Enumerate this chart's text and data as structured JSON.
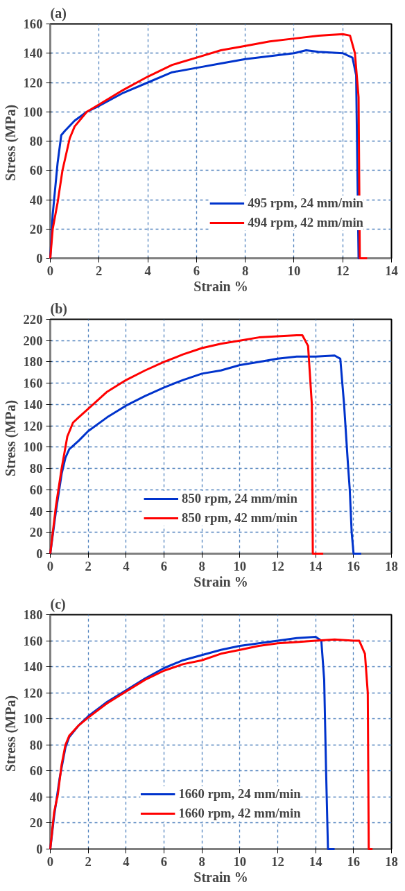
{
  "chart_data": [
    {
      "type": "line",
      "title": "(a)",
      "xlabel": "Strain %",
      "ylabel": "Stress  (MPa)",
      "xlim": [
        0,
        14
      ],
      "xticks": [
        0,
        2,
        4,
        6,
        8,
        10,
        12,
        14
      ],
      "ylim": [
        0,
        160
      ],
      "yticks": [
        0,
        20,
        40,
        60,
        80,
        100,
        120,
        140,
        160
      ],
      "grid": true,
      "legend": "bottom right",
      "series": [
        {
          "name": "495 rpm, 24 mm/min",
          "color": "#0033cc",
          "x": [
            0,
            0.1,
            0.3,
            0.45,
            0.6,
            1,
            1.5,
            2,
            3,
            4,
            5,
            6,
            7,
            8,
            9,
            10,
            10.5,
            11,
            12,
            12.4,
            12.55,
            12.65,
            12.7
          ],
          "values": [
            0,
            30,
            65,
            84,
            87,
            94,
            100,
            104,
            113,
            120,
            127,
            130,
            133,
            136,
            138,
            140,
            142,
            141,
            140,
            137,
            125,
            0,
            0
          ]
        },
        {
          "name": "494 rpm, 42 mm/min",
          "color": "#ff0000",
          "x": [
            0,
            0.1,
            0.3,
            0.5,
            0.8,
            1,
            1.5,
            2,
            3,
            4,
            5,
            6,
            7,
            8,
            9,
            10,
            11,
            12,
            12.3,
            12.5,
            12.65,
            12.7,
            13
          ],
          "values": [
            0,
            20,
            38,
            60,
            82,
            90,
            100,
            105,
            115,
            124,
            132,
            137,
            142,
            145,
            148,
            150,
            152,
            153,
            152,
            140,
            110,
            0,
            0
          ]
        }
      ]
    },
    {
      "type": "line",
      "title": "(b)",
      "xlabel": "Strain %",
      "ylabel": "Stress  (MPa)",
      "xlim": [
        0,
        18
      ],
      "xticks": [
        0,
        2,
        4,
        6,
        8,
        10,
        12,
        14,
        16,
        18
      ],
      "ylim": [
        0,
        220
      ],
      "yticks": [
        0,
        20,
        40,
        60,
        80,
        100,
        120,
        140,
        160,
        180,
        200,
        220
      ],
      "grid": true,
      "legend": "bottom",
      "series": [
        {
          "name": "850 rpm, 24 mm/min",
          "color": "#0033cc",
          "x": [
            0,
            0.3,
            0.6,
            0.8,
            1,
            1.5,
            2,
            3,
            4,
            5,
            6,
            7,
            8,
            9,
            10,
            11,
            12,
            13,
            14,
            15,
            15.3,
            15.5,
            15.7,
            15.8,
            15.9,
            16,
            16.4
          ],
          "values": [
            0,
            40,
            75,
            90,
            98,
            106,
            115,
            128,
            139,
            148,
            156,
            163,
            169,
            172,
            177,
            180,
            183,
            185,
            185,
            186,
            183,
            140,
            85,
            60,
            20,
            0,
            0
          ]
        },
        {
          "name": "850 rpm, 42 mm/min",
          "color": "#ff0000",
          "x": [
            0,
            0.3,
            0.6,
            0.9,
            1.2,
            1.5,
            2,
            3,
            4,
            5,
            6,
            7,
            8,
            9,
            10,
            11,
            12,
            13,
            13.3,
            13.6,
            13.8,
            13.85,
            14.4
          ],
          "values": [
            0,
            45,
            80,
            110,
            123,
            128,
            136,
            152,
            163,
            172,
            180,
            187,
            193,
            197,
            200,
            203,
            204,
            205,
            205,
            195,
            140,
            0,
            0
          ]
        }
      ]
    },
    {
      "type": "line",
      "title": "(c)",
      "xlabel": "Strain %",
      "ylabel": "Stress  (MPa)",
      "xlim": [
        0,
        18
      ],
      "xticks": [
        0,
        2,
        4,
        6,
        8,
        10,
        12,
        14,
        16,
        18
      ],
      "ylim": [
        0,
        180
      ],
      "yticks": [
        0,
        20,
        40,
        60,
        80,
        100,
        120,
        140,
        160,
        180
      ],
      "grid": true,
      "legend": "bottom",
      "series": [
        {
          "name": "1660 rpm, 24 mm/min",
          "color": "#0033cc",
          "x": [
            0,
            0.2,
            0.5,
            0.8,
            1,
            1.5,
            2,
            3,
            4,
            5,
            6,
            7,
            8,
            9,
            10,
            11,
            12,
            13,
            14,
            14.3,
            14.45,
            14.55,
            14.65,
            15
          ],
          "values": [
            0,
            25,
            55,
            78,
            86,
            95,
            102,
            113,
            122,
            131,
            139,
            145,
            149,
            153,
            156,
            158,
            160,
            162,
            163,
            160,
            130,
            60,
            0,
            0
          ]
        },
        {
          "name": "1660 rpm, 42 mm/min",
          "color": "#ff0000",
          "x": [
            0,
            0.2,
            0.4,
            0.6,
            0.8,
            1,
            1.5,
            2,
            3,
            4,
            5,
            6,
            7,
            8,
            9,
            10,
            11,
            12,
            13,
            14,
            15,
            16,
            16.3,
            16.6,
            16.75,
            16.8,
            17
          ],
          "values": [
            0,
            28,
            42,
            65,
            80,
            87,
            95,
            101,
            112,
            121,
            130,
            137,
            142,
            145,
            150,
            153,
            156,
            158,
            159,
            160,
            161,
            160,
            160,
            150,
            120,
            0,
            0
          ]
        }
      ]
    }
  ]
}
